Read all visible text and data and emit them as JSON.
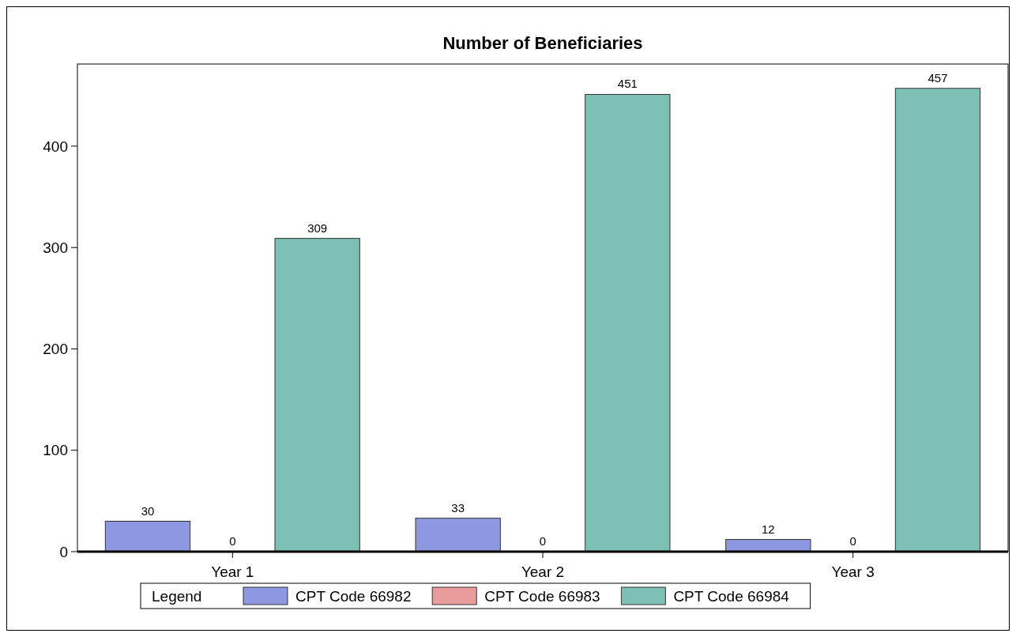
{
  "chart_data": {
    "type": "bar",
    "title": "Number of Beneficiaries",
    "categories": [
      "Year 1",
      "Year 2",
      "Year 3"
    ],
    "series": [
      {
        "name": "CPT Code 66982",
        "color": "#8e98e0",
        "values": [
          30,
          33,
          12
        ]
      },
      {
        "name": "CPT Code 66983",
        "color": "#e89c9c",
        "values": [
          0,
          0,
          0
        ]
      },
      {
        "name": "CPT Code 66984",
        "color": "#7dbfb2",
        "values": [
          309,
          451,
          457
        ]
      }
    ],
    "ylim": [
      0,
      481
    ],
    "yticks": [
      0,
      100,
      200,
      300,
      400
    ],
    "grid": false,
    "legend": "bottom",
    "legend_title": "Legend",
    "data_labels": true
  }
}
